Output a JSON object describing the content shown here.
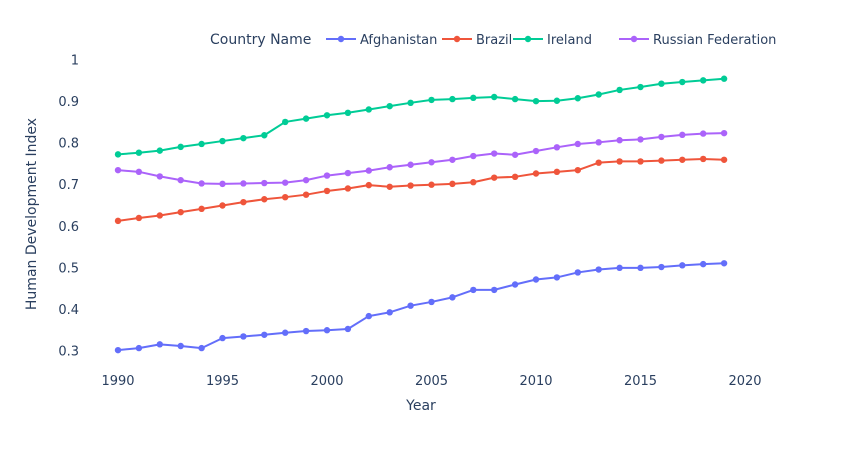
{
  "chart_data": {
    "type": "line",
    "xlabel": "Year",
    "ylabel": "Human Development Index",
    "xlim": [
      1990,
      2020
    ],
    "ylim": [
      0.3,
      1.0
    ],
    "x_ticks": [
      1990,
      1995,
      2000,
      2005,
      2010,
      2015,
      2020
    ],
    "y_ticks": [
      0.3,
      0.4,
      0.5,
      0.6,
      0.7,
      0.8,
      0.9,
      1
    ],
    "grid": false,
    "legend": {
      "title": "Country Name",
      "placement": "top",
      "orientation": "horizontal"
    },
    "x": [
      1990,
      1991,
      1992,
      1993,
      1994,
      1995,
      1996,
      1997,
      1998,
      1999,
      2000,
      2001,
      2002,
      2003,
      2004,
      2005,
      2006,
      2007,
      2008,
      2009,
      2010,
      2011,
      2012,
      2013,
      2014,
      2015,
      2016,
      2017,
      2018,
      2019
    ],
    "series": [
      {
        "name": "Afghanistan",
        "color": "#636efa",
        "values": [
          0.302,
          0.307,
          0.316,
          0.312,
          0.307,
          0.331,
          0.335,
          0.339,
          0.344,
          0.348,
          0.35,
          0.353,
          0.384,
          0.393,
          0.409,
          0.418,
          0.429,
          0.447,
          0.447,
          0.46,
          0.472,
          0.477,
          0.489,
          0.496,
          0.5,
          0.5,
          0.502,
          0.506,
          0.509,
          0.511
        ]
      },
      {
        "name": "Brazil",
        "color": "#ef553b",
        "values": [
          0.613,
          0.62,
          0.626,
          0.634,
          0.642,
          0.65,
          0.658,
          0.665,
          0.67,
          0.676,
          0.685,
          0.691,
          0.699,
          0.695,
          0.698,
          0.7,
          0.702,
          0.706,
          0.717,
          0.719,
          0.727,
          0.731,
          0.735,
          0.753,
          0.756,
          0.756,
          0.758,
          0.76,
          0.762,
          0.76
        ]
      },
      {
        "name": "Ireland",
        "color": "#00cc96",
        "values": [
          0.773,
          0.777,
          0.782,
          0.791,
          0.798,
          0.805,
          0.812,
          0.819,
          0.851,
          0.859,
          0.867,
          0.873,
          0.881,
          0.889,
          0.897,
          0.904,
          0.906,
          0.909,
          0.911,
          0.906,
          0.901,
          0.902,
          0.908,
          0.917,
          0.928,
          0.935,
          0.943,
          0.947,
          0.951,
          0.955
        ]
      },
      {
        "name": "Russian Federation",
        "color": "#ab63fa",
        "values": [
          0.735,
          0.731,
          0.72,
          0.711,
          0.703,
          0.702,
          0.703,
          0.704,
          0.705,
          0.711,
          0.722,
          0.728,
          0.734,
          0.742,
          0.748,
          0.754,
          0.76,
          0.769,
          0.775,
          0.772,
          0.781,
          0.79,
          0.798,
          0.802,
          0.807,
          0.809,
          0.815,
          0.82,
          0.823,
          0.824
        ]
      }
    ]
  }
}
